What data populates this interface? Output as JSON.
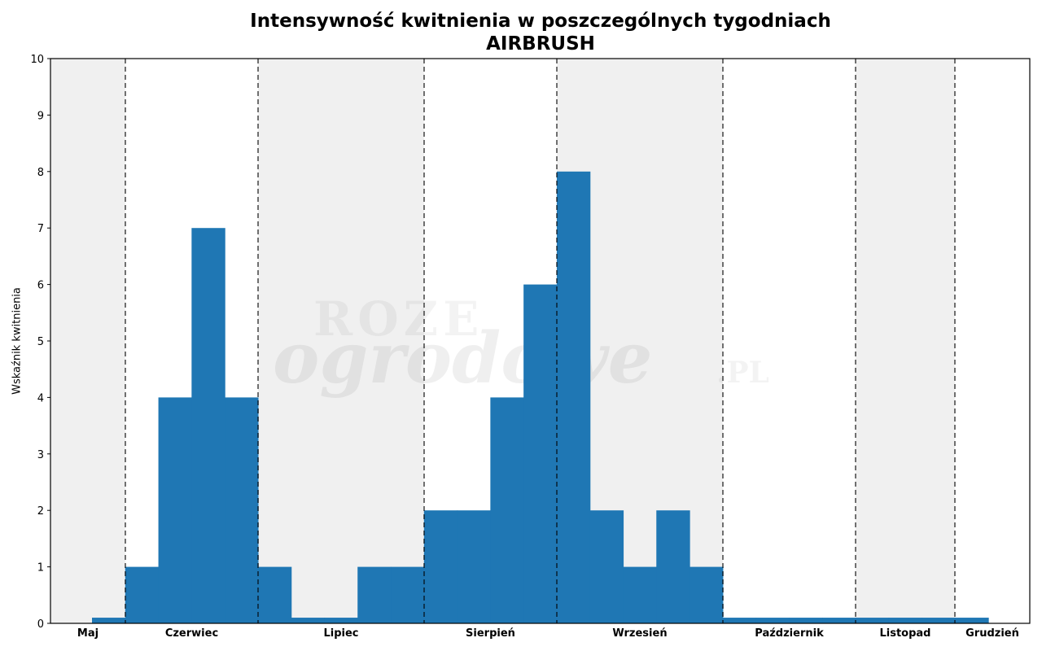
{
  "chart_data": {
    "type": "bar",
    "title": "Intensywność kwitnienia w poszczególnych tygodniach",
    "subtitle": "AIRBRUSH",
    "xlabel": "",
    "ylabel": "Wskaźnik kwitnienia",
    "ylim": [
      0,
      10
    ],
    "yticks": [
      0,
      1,
      2,
      3,
      4,
      5,
      6,
      7,
      8,
      9,
      10
    ],
    "grid": false,
    "legend": null,
    "bar_color": "#1f77b4",
    "shade_color": "#f0f0f0",
    "divider_color": "#555555",
    "weeks": [
      1,
      2,
      3,
      4,
      5,
      6,
      7,
      8,
      9,
      10,
      11,
      12,
      13,
      14,
      15,
      16,
      17,
      18,
      19,
      20,
      21,
      22,
      23,
      24,
      25,
      26,
      27
    ],
    "values": [
      0.1,
      1,
      4,
      7,
      4,
      1,
      0.1,
      0.1,
      1,
      1,
      2,
      2,
      4,
      6,
      8,
      2,
      1,
      2,
      1,
      0.1,
      0.1,
      0.1,
      0.1,
      0.1,
      0.1,
      0.1,
      0.1
    ],
    "months": [
      {
        "label": "Maj",
        "shaded": true
      },
      {
        "label": "Czerwiec",
        "shaded": false
      },
      {
        "label": "Lipiec",
        "shaded": true
      },
      {
        "label": "Sierpień",
        "shaded": false
      },
      {
        "label": "Wrzesień",
        "shaded": true
      },
      {
        "label": "Październik",
        "shaded": false
      },
      {
        "label": "Listopad",
        "shaded": true
      },
      {
        "label": "Grudzień",
        "shaded": false
      }
    ],
    "watermark": {
      "line1": "ROZE",
      "line2": "ogrodowe",
      "line3": ".PL"
    }
  }
}
